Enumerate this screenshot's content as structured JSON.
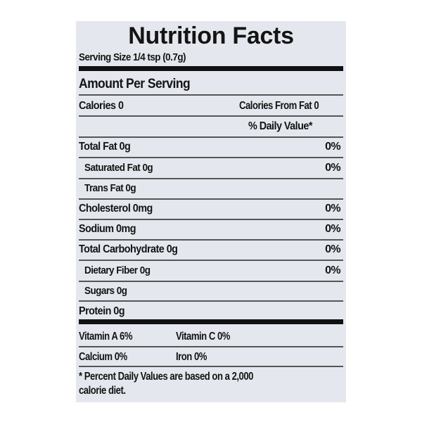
{
  "title": "Nutrition Facts",
  "serving_size": "Serving Size 1/4 tsp (0.7g)",
  "amount_per_serving": "Amount Per Serving",
  "calories": "Calories 0",
  "calories_from_fat": "Calories From Fat 0",
  "daily_value_header": "% Daily Value*",
  "nutrients": [
    {
      "name": "Total Fat 0g",
      "dv": "0%"
    },
    {
      "name": "Saturated Fat 0g",
      "dv": "0%"
    },
    {
      "name": "Trans Fat 0g",
      "dv": ""
    },
    {
      "name": "Cholesterol 0mg",
      "dv": "0%"
    },
    {
      "name": "Sodium 0mg",
      "dv": "0%"
    },
    {
      "name": "Total Carbohydrate 0g",
      "dv": "0%"
    },
    {
      "name": "Dietary Fiber 0g",
      "dv": "0%"
    },
    {
      "name": "Sugars 0g",
      "dv": ""
    },
    {
      "name": "Protein 0g",
      "dv": ""
    }
  ],
  "vitamins": {
    "vitamin_a": "Vitamin A 6%",
    "vitamin_c": "Vitamin C 0%",
    "calcium": "Calcium 0%",
    "iron": "Iron 0%"
  },
  "footnote": [
    "* Percent Daily Values are based on a 2,000",
    "calorie diet."
  ]
}
